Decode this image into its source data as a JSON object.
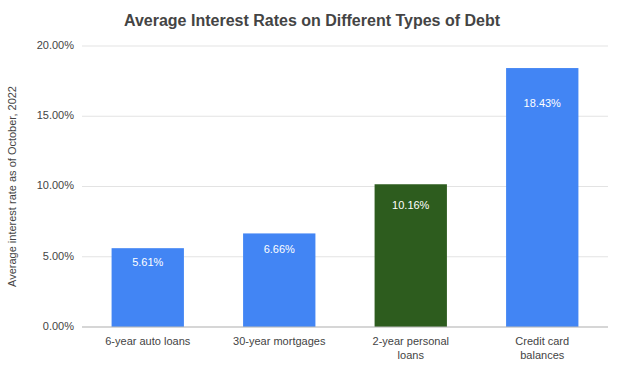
{
  "chart_data": {
    "type": "bar",
    "title": "Average Interest Rates on Different Types of Debt",
    "ylabel": "Average interest rate as of October, 2022",
    "categories": [
      "6-year auto loans",
      "30-year mortgages",
      "2-year personal\nloans",
      "Credit card\nbalances"
    ],
    "values": [
      5.61,
      6.66,
      10.16,
      18.43
    ],
    "value_labels": [
      "5.61%",
      "6.66%",
      "10.16%",
      "18.43%"
    ],
    "data_labels": true,
    "colors": [
      "#4285F4",
      "#4285F4",
      "#2D5C1E",
      "#4285F4"
    ],
    "ylim": [
      0,
      20
    ],
    "yticks": [
      {
        "value": 0,
        "label": "0.00%"
      },
      {
        "value": 5,
        "label": "5.00%"
      },
      {
        "value": 10,
        "label": "10.00%"
      },
      {
        "value": 15,
        "label": "15.00%"
      },
      {
        "value": 20,
        "label": "20.00%"
      }
    ],
    "grid": true
  }
}
